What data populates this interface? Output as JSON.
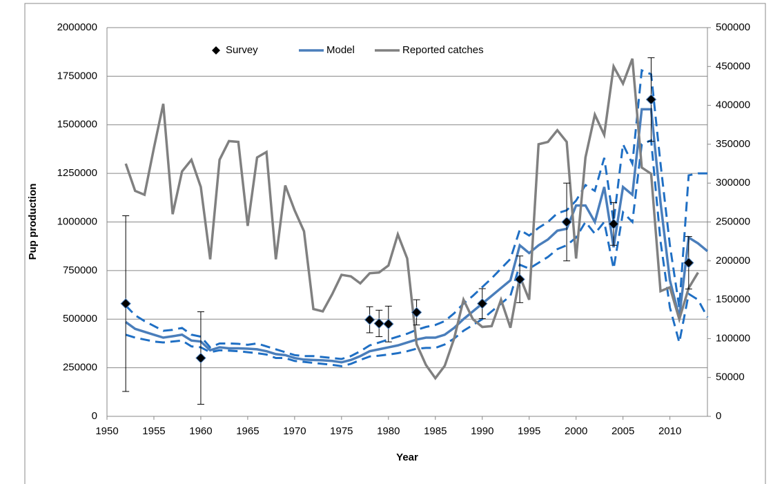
{
  "chart_data": {
    "type": "line",
    "y_label": "Pup production",
    "x_label": "Year",
    "xlim": [
      1950,
      2014
    ],
    "xticks": [
      1950,
      1955,
      1960,
      1965,
      1970,
      1975,
      1980,
      1985,
      1990,
      1995,
      2000,
      2005,
      2010
    ],
    "ylim": [
      0,
      2000000
    ],
    "yticks": [
      0,
      250000,
      500000,
      750000,
      1000000,
      1250000,
      1500000,
      1750000,
      2000000
    ],
    "y2lim": [
      0,
      500000
    ],
    "y2ticks": [
      0,
      50000,
      100000,
      150000,
      200000,
      250000,
      300000,
      350000,
      400000,
      450000,
      500000
    ],
    "grid": true,
    "legend": "top",
    "series": [
      {
        "name": "Survey",
        "color": "#000000",
        "marker": "diamond",
        "x": [
          1952,
          1960,
          1978,
          1979,
          1980,
          1983,
          1990,
          1994,
          1999,
          2004,
          2008,
          2012
        ],
        "values": [
          580000,
          300000,
          497000,
          478000,
          475000,
          535000,
          580000,
          705000,
          1000000,
          990000,
          1630000,
          790000
        ],
        "errors": [
          452000,
          238000,
          67000,
          68000,
          92000,
          65000,
          77000,
          120000,
          200000,
          110000,
          215000,
          135000
        ]
      },
      {
        "name": "Model",
        "color": "#4a7ebb",
        "x": [
          1952,
          1953,
          1954,
          1955,
          1956,
          1957,
          1958,
          1959,
          1960,
          1961,
          1962,
          1963,
          1964,
          1965,
          1966,
          1967,
          1968,
          1969,
          1970,
          1971,
          1972,
          1973,
          1974,
          1975,
          1976,
          1977,
          1978,
          1979,
          1980,
          1981,
          1982,
          1983,
          1984,
          1985,
          1986,
          1987,
          1988,
          1989,
          1990,
          1991,
          1992,
          1993,
          1994,
          1995,
          1996,
          1997,
          1998,
          1999,
          2000,
          2001,
          2002,
          2003,
          2004,
          2005,
          2006,
          2007,
          2008,
          2009,
          2010,
          2011,
          2012,
          2013,
          2014
        ],
        "values": [
          485000,
          450000,
          435000,
          420000,
          405000,
          412000,
          420000,
          390000,
          385000,
          340000,
          355000,
          350000,
          350000,
          348000,
          345000,
          335000,
          320000,
          315000,
          300000,
          292000,
          290000,
          288000,
          285000,
          278000,
          290000,
          310000,
          335000,
          345000,
          355000,
          365000,
          380000,
          395000,
          405000,
          405000,
          420000,
          455000,
          500000,
          540000,
          580000,
          620000,
          660000,
          700000,
          880000,
          840000,
          880000,
          910000,
          955000,
          965000,
          1085000,
          1085000,
          1000000,
          1180000,
          870000,
          1180000,
          1140000,
          1580000,
          1580000,
          1100000,
          700000,
          510000,
          920000,
          890000,
          850000
        ],
        "upper": [
          570000,
          520000,
          490000,
          465000,
          440000,
          445000,
          455000,
          420000,
          410000,
          355000,
          375000,
          375000,
          373000,
          368000,
          375000,
          360000,
          345000,
          330000,
          315000,
          310000,
          310000,
          305000,
          300000,
          295000,
          310000,
          335000,
          365000,
          380000,
          395000,
          410000,
          425000,
          445000,
          460000,
          470000,
          490000,
          530000,
          580000,
          620000,
          665000,
          710000,
          760000,
          810000,
          960000,
          930000,
          970000,
          1000000,
          1045000,
          1060000,
          1110000,
          1190000,
          1160000,
          1330000,
          1000000,
          1400000,
          1300000,
          1780000,
          1760000,
          1300000,
          880000,
          560000,
          1240000,
          1250000,
          1250000
        ],
        "lower": [
          420000,
          405000,
          395000,
          385000,
          380000,
          385000,
          390000,
          360000,
          355000,
          330000,
          340000,
          338000,
          335000,
          330000,
          325000,
          318000,
          300000,
          300000,
          285000,
          280000,
          275000,
          270000,
          265000,
          258000,
          270000,
          290000,
          308000,
          312000,
          318000,
          325000,
          335000,
          348000,
          352000,
          352000,
          370000,
          400000,
          440000,
          470000,
          500000,
          540000,
          580000,
          620000,
          780000,
          760000,
          790000,
          820000,
          860000,
          880000,
          920000,
          1000000,
          940000,
          1000000,
          760000,
          1050000,
          1000000,
          1400000,
          1420000,
          900000,
          560000,
          380000,
          630000,
          600000,
          510000
        ],
        "band_color": "#1f6fc4"
      },
      {
        "name": "Reported catches",
        "color": "#808080",
        "axis": "y2",
        "x": [
          1952,
          1953,
          1954,
          1955,
          1956,
          1957,
          1958,
          1959,
          1960,
          1961,
          1962,
          1963,
          1964,
          1965,
          1966,
          1967,
          1968,
          1969,
          1970,
          1971,
          1972,
          1973,
          1974,
          1975,
          1976,
          1977,
          1978,
          1979,
          1980,
          1981,
          1982,
          1983,
          1984,
          1985,
          1986,
          1987,
          1988,
          1989,
          1990,
          1991,
          1992,
          1993,
          1994,
          1995,
          1996,
          1997,
          1998,
          1999,
          2000,
          2001,
          2002,
          2003,
          2004,
          2005,
          2006,
          2007,
          2008,
          2009,
          2010,
          2011,
          2012,
          2013
        ],
        "values": [
          325000,
          290000,
          285000,
          345000,
          402000,
          260000,
          315000,
          330000,
          295000,
          202000,
          330000,
          354000,
          353000,
          245000,
          333000,
          340000,
          202000,
          297000,
          265000,
          238000,
          138000,
          135000,
          157000,
          182000,
          180000,
          171000,
          184000,
          185000,
          194000,
          234000,
          203000,
          93000,
          66000,
          49000,
          65000,
          100000,
          150000,
          125000,
          115000,
          116000,
          150000,
          114000,
          180000,
          150000,
          350000,
          353000,
          368000,
          353000,
          203000,
          333000,
          388000,
          362000,
          450000,
          428000,
          460000,
          320000,
          312000,
          161000,
          166000,
          125000,
          165000,
          185000
        ]
      }
    ]
  }
}
